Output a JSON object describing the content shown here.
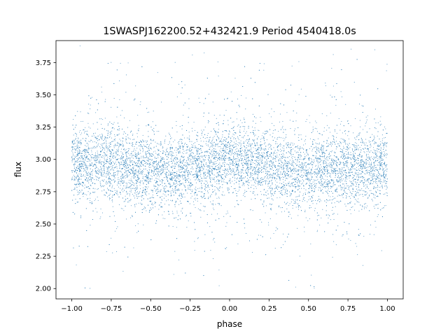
{
  "chart_data": {
    "type": "scatter",
    "title": "1SWASPJ162200.52+432421.9 Period 4540418.0s",
    "xlabel": "phase",
    "ylabel": "flux",
    "xlim": [
      -1.1,
      1.1
    ],
    "ylim": [
      1.92,
      3.92
    ],
    "xticks": [
      -1.0,
      -0.75,
      -0.5,
      -0.25,
      0.0,
      0.25,
      0.5,
      0.75,
      1.0
    ],
    "xtick_labels": [
      "−1.00",
      "−0.75",
      "−0.50",
      "−0.25",
      "0.00",
      "0.25",
      "0.50",
      "0.75",
      "1.00"
    ],
    "yticks": [
      2.0,
      2.25,
      2.5,
      2.75,
      3.0,
      3.25,
      3.5,
      3.75
    ],
    "ytick_labels": [
      "2.00",
      "2.25",
      "2.50",
      "2.75",
      "3.00",
      "3.25",
      "3.50",
      "3.75"
    ],
    "grid": false,
    "marker_color": "#1f77b4",
    "series": [
      {
        "x_range": [
          -1.0,
          1.0
        ],
        "y_center_by_phase": [
          [
            -1.0,
            2.97
          ],
          [
            -0.75,
            2.98
          ],
          [
            -0.5,
            2.9
          ],
          [
            -0.25,
            2.92
          ],
          [
            0.0,
            2.99
          ],
          [
            0.25,
            2.95
          ],
          [
            0.5,
            2.88
          ],
          [
            0.75,
            2.92
          ],
          [
            1.0,
            2.97
          ]
        ],
        "y_core_range": [
          2.6,
          3.3
        ],
        "y_full_range": [
          2.0,
          3.88
        ]
      }
    ]
  }
}
